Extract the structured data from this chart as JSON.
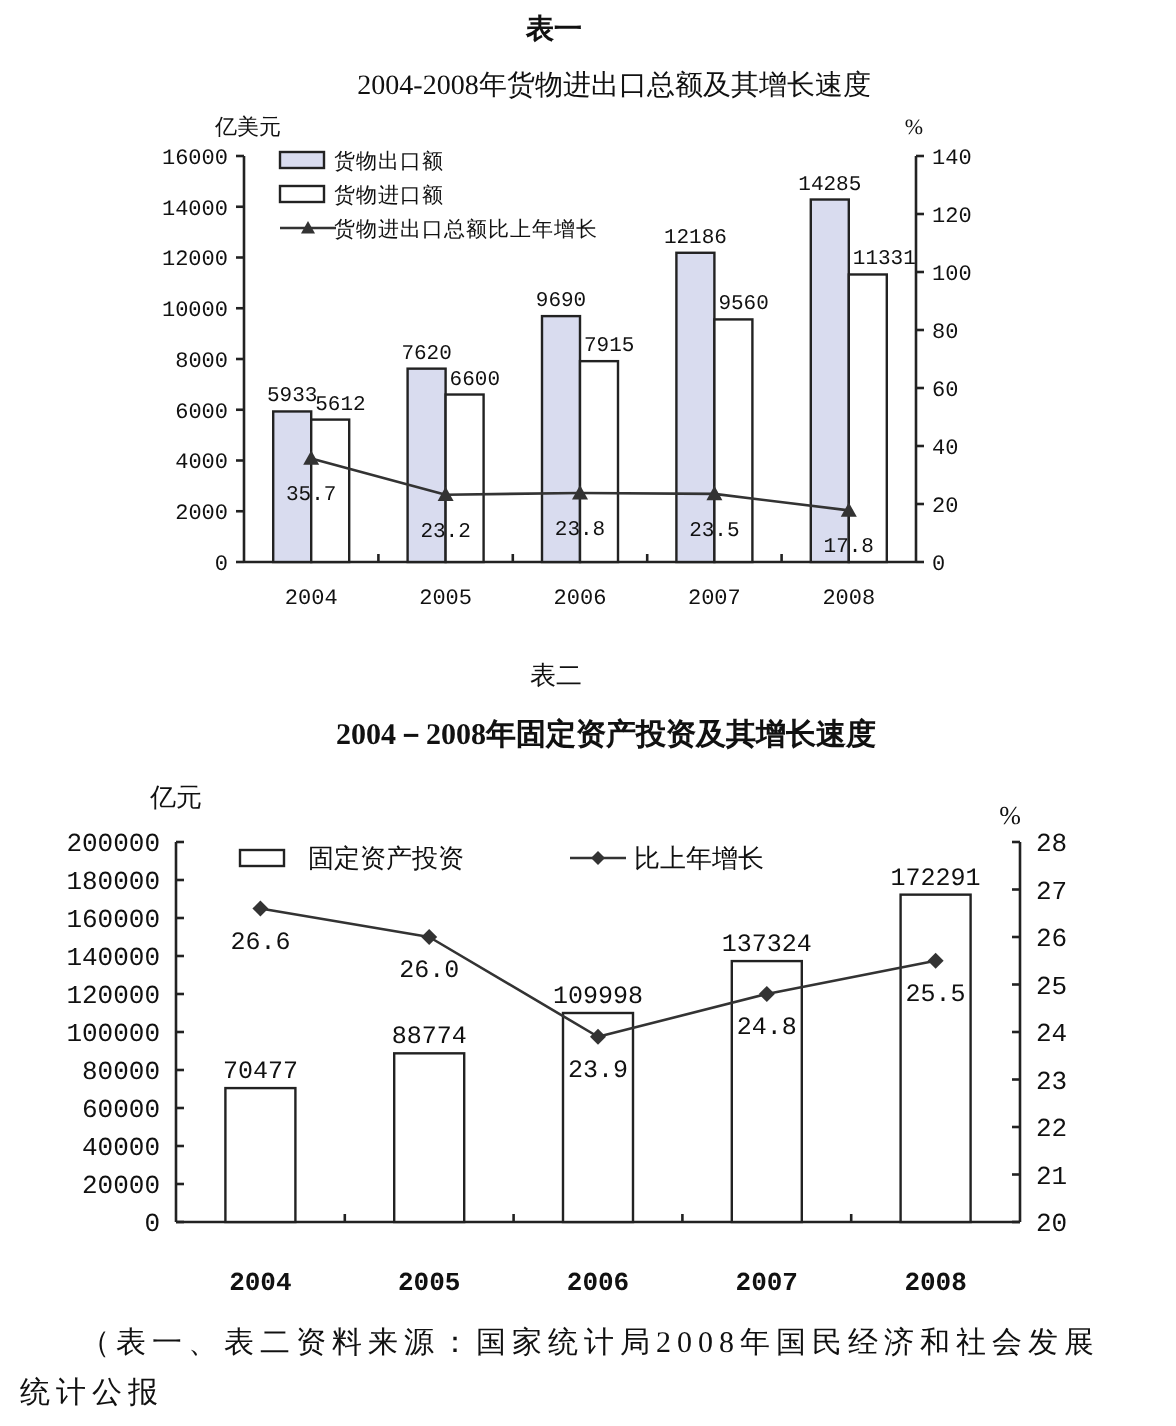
{
  "chart_data": [
    {
      "type": "bar",
      "title": "表一",
      "subtitle": "2004-2008年货物进出口总额及其增长速度",
      "ylabel": "亿美元",
      "y2label": "%",
      "categories": [
        "2004",
        "2005",
        "2006",
        "2007",
        "2008"
      ],
      "series": [
        {
          "name": "货物出口额",
          "color": "#d9dcef",
          "values": [
            5933,
            7620,
            9690,
            12186,
            14285
          ]
        },
        {
          "name": "货物进口额",
          "color": "#ffffff",
          "values": [
            5612,
            6600,
            7915,
            9560,
            11331
          ]
        },
        {
          "name": "货物进出口总额比上年增长",
          "type": "line",
          "axis": "y2",
          "color": "#333333",
          "values": [
            35.7,
            23.2,
            23.8,
            23.5,
            17.8
          ]
        }
      ],
      "ylim": [
        0,
        16000
      ],
      "yticks": [
        0,
        2000,
        4000,
        6000,
        8000,
        10000,
        12000,
        14000,
        16000
      ],
      "y2lim": [
        0,
        140
      ],
      "y2ticks": [
        0,
        20,
        40,
        60,
        80,
        100,
        120,
        140
      ],
      "data_labels": true,
      "legend": "top left",
      "marker": "triangle"
    },
    {
      "type": "bar",
      "title": "表二",
      "subtitle": "2004－2008年固定资产投资及其增长速度",
      "ylabel": "亿元",
      "y2label": "%",
      "categories": [
        "2004",
        "2005",
        "2006",
        "2007",
        "2008"
      ],
      "series": [
        {
          "name": "固定资产投资",
          "color": "#ffffff",
          "values": [
            70477,
            88774,
            109998,
            137324,
            172291
          ]
        },
        {
          "name": "比上年增长",
          "type": "line",
          "axis": "y2",
          "color": "#333333",
          "values": [
            26.6,
            26.0,
            23.9,
            24.8,
            25.5
          ],
          "value_labels": [
            "26.6",
            "26.0",
            "23.9",
            "24.8",
            "25.5"
          ]
        }
      ],
      "ylim": [
        0,
        200000
      ],
      "yticks": [
        0,
        20000,
        40000,
        60000,
        80000,
        100000,
        120000,
        140000,
        160000,
        180000,
        200000
      ],
      "y2lim": [
        20,
        28
      ],
      "y2ticks": [
        20,
        21,
        22,
        23,
        24,
        25,
        26,
        27,
        28
      ],
      "data_labels": true,
      "legend": "top",
      "marker": "diamond",
      "annotations": [
        "（表一、表二资料来源：国家统计局2008年国民经济和社会发展统计公报"
      ]
    }
  ]
}
